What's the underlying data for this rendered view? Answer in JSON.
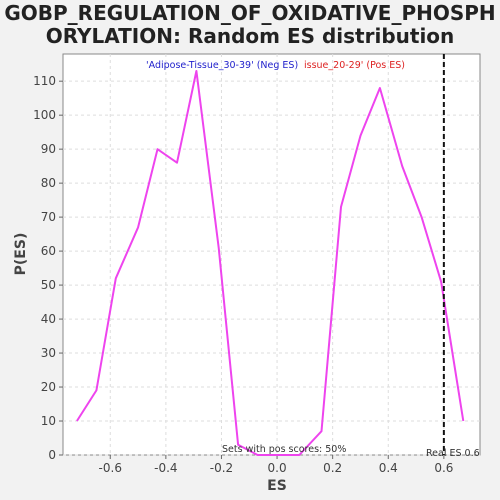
{
  "chart_data": {
    "type": "line",
    "title_lines": [
      "GOBP_REGULATION_OF_OXIDATIVE_PHOSPH",
      "ORYLATION: Random ES distribution"
    ],
    "xlabel": "ES",
    "ylabel": "P(ES)",
    "xlim": [
      -0.77,
      0.73
    ],
    "ylim": [
      0,
      118
    ],
    "x_ticks": [
      -0.6,
      -0.4,
      -0.2,
      0.0,
      0.2,
      0.4,
      0.6
    ],
    "x_tick_labels": [
      "-0.6",
      "-0.4",
      "-0.2",
      "0.0",
      "0.2",
      "0.4",
      "0.6"
    ],
    "y_ticks": [
      0,
      10,
      20,
      30,
      40,
      50,
      60,
      70,
      80,
      90,
      100,
      110
    ],
    "y_tick_labels": [
      "0",
      "10",
      "20",
      "30",
      "40",
      "50",
      "60",
      "70",
      "80",
      "90",
      "100",
      "110"
    ],
    "grid": true,
    "legend": {
      "placement": "top",
      "neg_label": "'Adipose-Tissue_30-39' (Neg ES)",
      "pos_label": "issue_20-29' (Pos ES)",
      "neg_color": "#2222cc",
      "pos_color": "#dd2222"
    },
    "series": [
      {
        "color": "#ee44ee",
        "x": [
          -0.72,
          -0.65,
          -0.58,
          -0.5,
          -0.43,
          -0.36,
          -0.29,
          -0.21,
          -0.14,
          -0.07,
          0.01,
          0.08,
          0.16,
          0.23,
          0.3,
          0.37,
          0.45,
          0.52,
          0.59,
          0.67
        ],
        "y": [
          10,
          19,
          52,
          67,
          90,
          86,
          113,
          61,
          3,
          0,
          0,
          0,
          7,
          73,
          94,
          108,
          85,
          70,
          51,
          10
        ]
      }
    ],
    "real_es": 0.6,
    "real_es_label": "Real ES 0.6",
    "pos_scores_note": "Sets with pos scores: 50%"
  }
}
